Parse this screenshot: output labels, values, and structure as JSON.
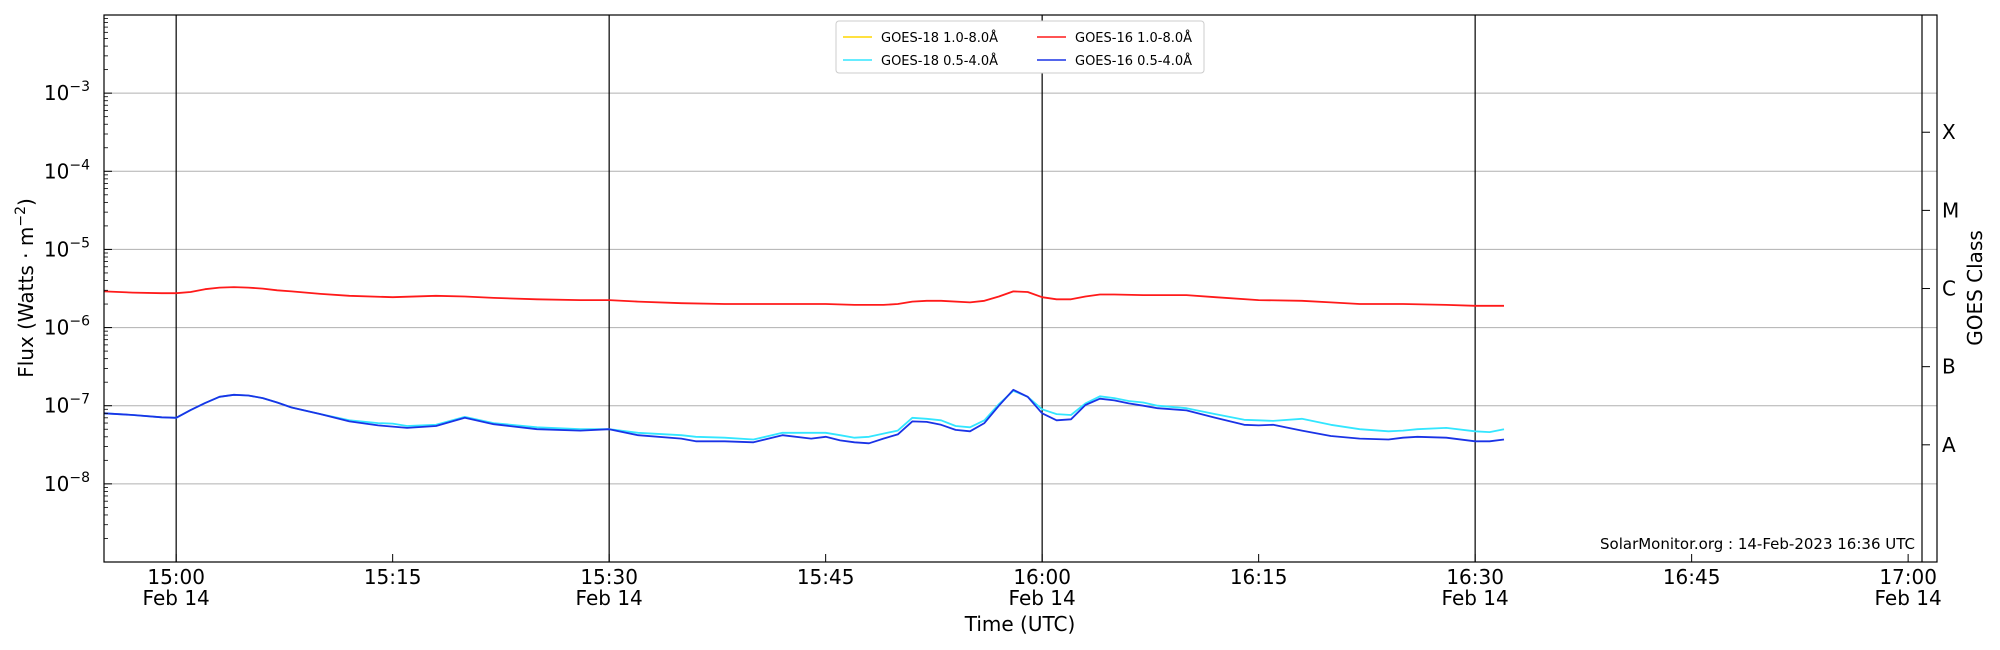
{
  "chart_data": {
    "type": "line",
    "ylabel_parts": [
      "Flux (Watts · m",
      "−2",
      ")"
    ],
    "xlabel": "Time (UTC)",
    "right_label": "GOES Class",
    "y_scale": "log",
    "ylim": [
      1e-09,
      0.01
    ],
    "y_ticks": [
      {
        "value": 1e-08,
        "mantissa": "10",
        "exp": "−8"
      },
      {
        "value": 1e-07,
        "mantissa": "10",
        "exp": "−7"
      },
      {
        "value": 1e-06,
        "mantissa": "10",
        "exp": "−6"
      },
      {
        "value": 1e-05,
        "mantissa": "10",
        "exp": "−5"
      },
      {
        "value": 0.0001,
        "mantissa": "10",
        "exp": "−4"
      },
      {
        "value": 0.001,
        "mantissa": "10",
        "exp": "−3"
      }
    ],
    "class_labels": [
      {
        "label": "A",
        "value": 3.16e-08
      },
      {
        "label": "B",
        "value": 3.16e-07
      },
      {
        "label": "C",
        "value": 3.16e-06
      },
      {
        "label": "M",
        "value": 3.16e-05
      },
      {
        "label": "X",
        "value": 0.000316
      }
    ],
    "xlim": [
      "14:55",
      "17:02"
    ],
    "x_ticks": [
      {
        "time": "15:00",
        "label": "15:00",
        "date": "Feb 14"
      },
      {
        "time": "15:15",
        "label": "15:15",
        "date": ""
      },
      {
        "time": "15:30",
        "label": "15:30",
        "date": "Feb 14"
      },
      {
        "time": "15:45",
        "label": "15:45",
        "date": ""
      },
      {
        "time": "16:00",
        "label": "16:00",
        "date": "Feb 14"
      },
      {
        "time": "16:15",
        "label": "16:15",
        "date": ""
      },
      {
        "time": "16:30",
        "label": "16:30",
        "date": "Feb 14"
      },
      {
        "time": "16:45",
        "label": "16:45",
        "date": ""
      },
      {
        "time": "17:00",
        "label": "17:00",
        "date": "Feb 14"
      }
    ],
    "vlines": [
      "15:00",
      "15:30",
      "16:00",
      "16:30"
    ],
    "grid": "horizontal",
    "legend_position": "top-center",
    "credit": "SolarMonitor.org : 14-Feb-2023 16:36 UTC",
    "series": [
      {
        "name": "GOES-18 1.0-8.0Å",
        "color": "#ffd700",
        "x": [],
        "y": []
      },
      {
        "name": "GOES-16 1.0-8.0Å",
        "color": "#ff1a1a",
        "x": [
          "14:55",
          "14:57",
          "14:59",
          "15:00",
          "15:01",
          "15:02",
          "15:03",
          "15:04",
          "15:05",
          "15:06",
          "15:07",
          "15:08",
          "15:10",
          "15:12",
          "15:15",
          "15:18",
          "15:20",
          "15:22",
          "15:25",
          "15:28",
          "15:30",
          "15:32",
          "15:35",
          "15:38",
          "15:40",
          "15:42",
          "15:45",
          "15:47",
          "15:49",
          "15:50",
          "15:51",
          "15:52",
          "15:53",
          "15:55",
          "15:56",
          "15:57",
          "15:58",
          "15:59",
          "16:00",
          "16:01",
          "16:02",
          "16:03",
          "16:04",
          "16:05",
          "16:07",
          "16:10",
          "16:12",
          "16:15",
          "16:18",
          "16:20",
          "16:22",
          "16:25",
          "16:28",
          "16:30",
          "16:32"
        ],
        "y": [
          2.9e-06,
          2.8e-06,
          2.75e-06,
          2.75e-06,
          2.85e-06,
          3.1e-06,
          3.25e-06,
          3.3e-06,
          3.25e-06,
          3.15e-06,
          3e-06,
          2.9e-06,
          2.7e-06,
          2.55e-06,
          2.45e-06,
          2.55e-06,
          2.5e-06,
          2.4e-06,
          2.3e-06,
          2.25e-06,
          2.25e-06,
          2.15e-06,
          2.05e-06,
          2e-06,
          2e-06,
          2e-06,
          2e-06,
          1.95e-06,
          1.95e-06,
          2e-06,
          2.15e-06,
          2.2e-06,
          2.2e-06,
          2.1e-06,
          2.2e-06,
          2.5e-06,
          2.9e-06,
          2.85e-06,
          2.45e-06,
          2.3e-06,
          2.3e-06,
          2.5e-06,
          2.65e-06,
          2.65e-06,
          2.6e-06,
          2.6e-06,
          2.45e-06,
          2.25e-06,
          2.2e-06,
          2.1e-06,
          2e-06,
          2e-06,
          1.95e-06,
          1.9e-06,
          1.9e-06
        ]
      },
      {
        "name": "GOES-18 0.5-4.0Å",
        "color": "#33e6ff",
        "x": [
          "14:55",
          "14:57",
          "14:59",
          "15:00",
          "15:01",
          "15:02",
          "15:03",
          "15:04",
          "15:05",
          "15:06",
          "15:07",
          "15:08",
          "15:10",
          "15:12",
          "15:14",
          "15:15",
          "15:16",
          "15:18",
          "15:20",
          "15:22",
          "15:25",
          "15:28",
          "15:30",
          "15:32",
          "15:35",
          "15:36",
          "15:38",
          "15:40",
          "15:42",
          "15:44",
          "15:45",
          "15:46",
          "15:47",
          "15:48",
          "15:49",
          "15:50",
          "15:51",
          "15:52",
          "15:53",
          "15:54",
          "15:55",
          "15:56",
          "15:57",
          "15:58",
          "15:59",
          "16:00",
          "16:01",
          "16:02",
          "16:03",
          "16:04",
          "16:05",
          "16:06",
          "16:07",
          "16:08",
          "16:10",
          "16:12",
          "16:14",
          "16:15",
          "16:16",
          "16:18",
          "16:20",
          "16:22",
          "16:24",
          "16:25",
          "16:26",
          "16:28",
          "16:30",
          "16:31",
          "16:32"
        ],
        "y": [
          8e-08,
          7.6e-08,
          7.1e-08,
          7e-08,
          8.8e-08,
          1.08e-07,
          1.3e-07,
          1.38e-07,
          1.35e-07,
          1.25e-07,
          1.1e-07,
          9.5e-08,
          7.8e-08,
          6.5e-08,
          6e-08,
          5.9e-08,
          5.5e-08,
          5.7e-08,
          7.2e-08,
          6e-08,
          5.3e-08,
          5e-08,
          5e-08,
          4.5e-08,
          4.2e-08,
          4e-08,
          3.9e-08,
          3.7e-08,
          4.5e-08,
          4.5e-08,
          4.5e-08,
          4.2e-08,
          3.9e-08,
          4e-08,
          4.4e-08,
          4.8e-08,
          7e-08,
          6.8e-08,
          6.5e-08,
          5.5e-08,
          5.3e-08,
          6.5e-08,
          1.05e-07,
          1.55e-07,
          1.3e-07,
          9e-08,
          7.8e-08,
          7.6e-08,
          1.07e-07,
          1.32e-07,
          1.25e-07,
          1.15e-07,
          1.1e-07,
          1e-07,
          9.3e-08,
          7.8e-08,
          6.6e-08,
          6.5e-08,
          6.4e-08,
          6.8e-08,
          5.7e-08,
          5e-08,
          4.7e-08,
          4.8e-08,
          5e-08,
          5.2e-08,
          4.7e-08,
          4.6e-08,
          5e-08
        ]
      },
      {
        "name": "GOES-16 0.5-4.0Å",
        "color": "#1a33e6",
        "x": [
          "14:55",
          "14:57",
          "14:59",
          "15:00",
          "15:01",
          "15:02",
          "15:03",
          "15:04",
          "15:05",
          "15:06",
          "15:07",
          "15:08",
          "15:10",
          "15:12",
          "15:14",
          "15:15",
          "15:16",
          "15:18",
          "15:20",
          "15:22",
          "15:25",
          "15:28",
          "15:30",
          "15:32",
          "15:35",
          "15:36",
          "15:38",
          "15:40",
          "15:42",
          "15:44",
          "15:45",
          "15:46",
          "15:47",
          "15:48",
          "15:49",
          "15:50",
          "15:51",
          "15:52",
          "15:53",
          "15:54",
          "15:55",
          "15:56",
          "15:57",
          "15:58",
          "15:59",
          "16:00",
          "16:01",
          "16:02",
          "16:03",
          "16:04",
          "16:05",
          "16:06",
          "16:07",
          "16:08",
          "16:10",
          "16:12",
          "16:14",
          "16:15",
          "16:16",
          "16:18",
          "16:20",
          "16:22",
          "16:24",
          "16:25",
          "16:26",
          "16:28",
          "16:30",
          "16:31",
          "16:32"
        ],
        "y": [
          8e-08,
          7.6e-08,
          7.1e-08,
          7e-08,
          8.8e-08,
          1.08e-07,
          1.3e-07,
          1.38e-07,
          1.35e-07,
          1.25e-07,
          1.1e-07,
          9.5e-08,
          7.8e-08,
          6.3e-08,
          5.6e-08,
          5.4e-08,
          5.2e-08,
          5.5e-08,
          7e-08,
          5.8e-08,
          5e-08,
          4.8e-08,
          5e-08,
          4.2e-08,
          3.8e-08,
          3.5e-08,
          3.5e-08,
          3.4e-08,
          4.2e-08,
          3.8e-08,
          4e-08,
          3.6e-08,
          3.4e-08,
          3.3e-08,
          3.8e-08,
          4.3e-08,
          6.3e-08,
          6.2e-08,
          5.7e-08,
          4.9e-08,
          4.7e-08,
          6e-08,
          1e-07,
          1.6e-07,
          1.3e-07,
          8e-08,
          6.5e-08,
          6.7e-08,
          1.02e-07,
          1.23e-07,
          1.17e-07,
          1.07e-07,
          1e-07,
          9.3e-08,
          8.7e-08,
          7e-08,
          5.7e-08,
          5.6e-08,
          5.7e-08,
          4.8e-08,
          4.1e-08,
          3.8e-08,
          3.7e-08,
          3.9e-08,
          4e-08,
          3.9e-08,
          3.5e-08,
          3.5e-08,
          3.7e-08
        ]
      }
    ]
  }
}
